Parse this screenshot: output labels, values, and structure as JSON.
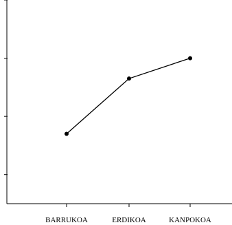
{
  "chart_data": {
    "type": "line",
    "categories": [
      "BARRUKOA",
      "ERDIKOA",
      "KANPOKOA"
    ],
    "values": [
      0.7,
      1.65,
      2.0
    ],
    "ylim": [
      -0.5,
      3.0
    ],
    "yticks": [
      0,
      1,
      2,
      3
    ],
    "grid": false,
    "legend": "none",
    "line_color": "#000000",
    "marker_color": "#000000"
  }
}
